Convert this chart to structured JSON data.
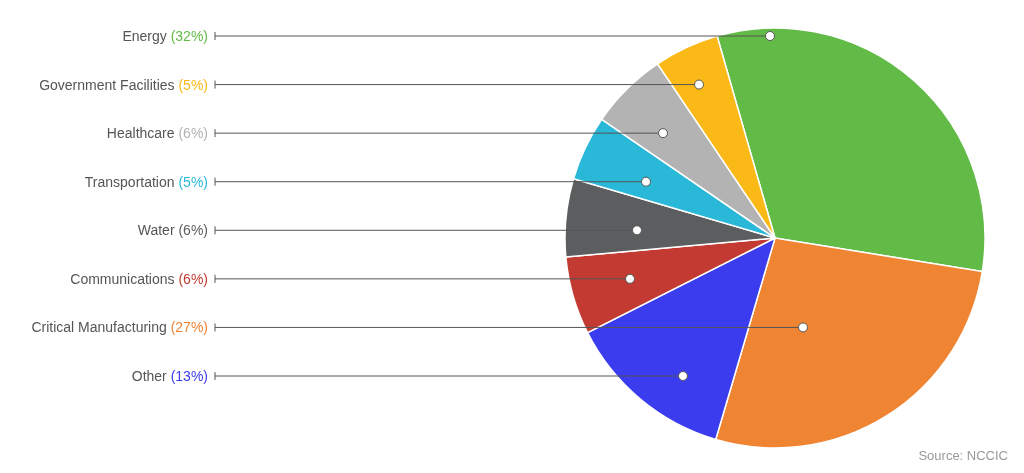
{
  "chart_data": {
    "type": "pie",
    "categories": [
      "Energy",
      "Critical Manufacturing",
      "Other",
      "Communications",
      "Water",
      "Transportation",
      "Healthcare",
      "Government Facilities"
    ],
    "values": [
      32,
      27,
      13,
      6,
      6,
      5,
      6,
      5
    ],
    "value_labels": [
      "(32%)",
      "(27%)",
      "(13%)",
      "(6%)",
      "(6%)",
      "(5%)",
      "(6%)",
      "(5%)"
    ],
    "colors": [
      "#62bb47",
      "#ef8533",
      "#3a3ced",
      "#c23a31",
      "#5c5d5f",
      "#2ab8d8",
      "#b3b3b3",
      "#fbb917"
    ],
    "annotations": [
      "Source: NCCIC"
    ]
  }
}
